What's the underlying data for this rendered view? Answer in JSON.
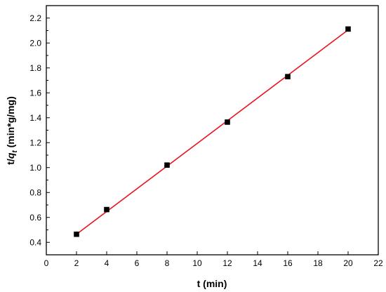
{
  "chart_data": {
    "type": "scatter",
    "title": "",
    "xlabel": "t (min)",
    "ylabel": {
      "prefix": "t/",
      "var": "q",
      "sub": "t",
      "suffix": " (min*g/mg)"
    },
    "xlim": [
      0,
      22
    ],
    "ylim": [
      0.3,
      2.3
    ],
    "xticks": [
      0,
      2,
      4,
      6,
      8,
      10,
      12,
      14,
      16,
      18,
      20,
      22
    ],
    "yticks": [
      0.4,
      0.6,
      0.8,
      1.0,
      1.2,
      1.4,
      1.6,
      1.8,
      2.0,
      2.2
    ],
    "xtick_labels": [
      "0",
      "2",
      "4",
      "6",
      "8",
      "10",
      "12",
      "14",
      "16",
      "18",
      "20",
      "22"
    ],
    "ytick_labels": [
      "0.4",
      "0.6",
      "0.8",
      "1.0",
      "1.2",
      "1.4",
      "1.6",
      "1.8",
      "2.0",
      "2.2"
    ],
    "grid": false,
    "series": [
      {
        "type": "scatter",
        "marker": "square",
        "color": "#000000",
        "x": [
          2,
          4,
          8,
          12,
          16,
          20
        ],
        "y": [
          0.465,
          0.663,
          1.02,
          1.365,
          1.73,
          2.112
        ]
      },
      {
        "type": "line",
        "color": "#e8141e",
        "x": [
          2,
          20
        ],
        "y": [
          0.465,
          2.105
        ]
      }
    ]
  }
}
